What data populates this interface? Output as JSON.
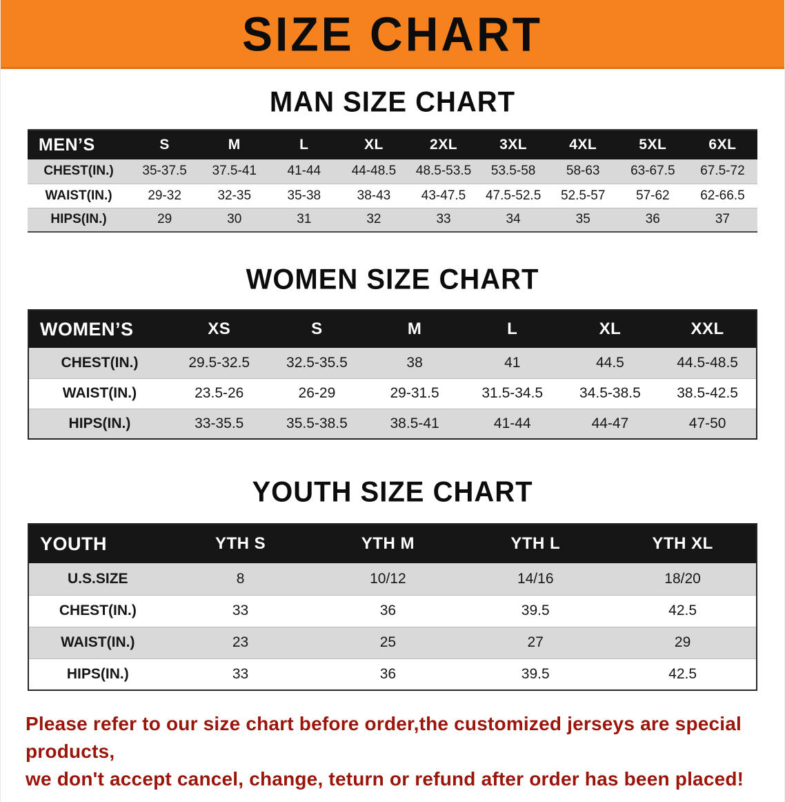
{
  "banner": {
    "title": "SIZE CHART"
  },
  "colors": {
    "banner_bg": "#f5821e",
    "table_header_bg": "#161616",
    "row_alt_bg": "#d9d9d9",
    "disclaimer_color": "#9b150b"
  },
  "sections": {
    "men": {
      "heading": "MAN SIZE CHART",
      "table": {
        "header": [
          "MEN’S",
          "S",
          "M",
          "L",
          "XL",
          "2XL",
          "3XL",
          "4XL",
          "5XL",
          "6XL"
        ],
        "rows": [
          [
            "CHEST(IN.)",
            "35-37.5",
            "37.5-41",
            "41-44",
            "44-48.5",
            "48.5-53.5",
            "53.5-58",
            "58-63",
            "63-67.5",
            "67.5-72"
          ],
          [
            "WAIST(IN.)",
            "29-32",
            "32-35",
            "35-38",
            "38-43",
            "43-47.5",
            "47.5-52.5",
            "52.5-57",
            "57-62",
            "62-66.5"
          ],
          [
            "HIPS(IN.)",
            "29",
            "30",
            "31",
            "32",
            "33",
            "34",
            "35",
            "36",
            "37"
          ]
        ]
      }
    },
    "women": {
      "heading": "WOMEN SIZE CHART",
      "table": {
        "header": [
          "WOMEN’S",
          "XS",
          "S",
          "M",
          "L",
          "XL",
          "XXL"
        ],
        "rows": [
          [
            "CHEST(IN.)",
            "29.5-32.5",
            "32.5-35.5",
            "38",
            "41",
            "44.5",
            "44.5-48.5"
          ],
          [
            "WAIST(IN.)",
            "23.5-26",
            "26-29",
            "29-31.5",
            "31.5-34.5",
            "34.5-38.5",
            "38.5-42.5"
          ],
          [
            "HIPS(IN.)",
            "33-35.5",
            "35.5-38.5",
            "38.5-41",
            "41-44",
            "44-47",
            "47-50"
          ]
        ]
      }
    },
    "youth": {
      "heading": "YOUTH SIZE CHART",
      "table": {
        "header": [
          "YOUTH",
          "YTH S",
          "YTH M",
          "YTH L",
          "YTH XL"
        ],
        "rows": [
          [
            "U.S.SIZE",
            "8",
            "10/12",
            "14/16",
            "18/20"
          ],
          [
            "CHEST(IN.)",
            "33",
            "36",
            "39.5",
            "42.5"
          ],
          [
            "WAIST(IN.)",
            "23",
            "25",
            "27",
            "29"
          ],
          [
            "HIPS(IN.)",
            "33",
            "36",
            "39.5",
            "42.5"
          ]
        ]
      }
    }
  },
  "disclaimer": {
    "line1": "Please refer to our size chart before order,the customized jerseys are special products,",
    "line2": "we don't accept cancel, change, teturn or refund after order has been placed!"
  }
}
